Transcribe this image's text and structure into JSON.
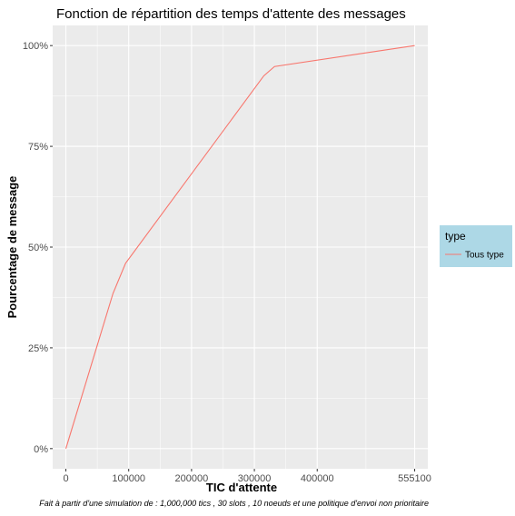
{
  "chart_data": {
    "type": "line",
    "title": "Fonction de répartition des temps d'attente des messages",
    "xlabel": "TIC d'attente",
    "ylabel": "Pourcentage de message",
    "caption": "Fait à partir d'une simulation de : 1,000,000 tics , 30 slots , 10 noeuds et une politique d'envoi non prioritaire",
    "xlim": [
      -21000,
      576000
    ],
    "ylim": [
      -0.05,
      1.05
    ],
    "x_ticks": [
      0,
      100000,
      200000,
      300000,
      400000,
      555100
    ],
    "x_tick_labels": [
      "0",
      "100000",
      "200000",
      "300000",
      "400000",
      "555100"
    ],
    "y_ticks": [
      0,
      0.25,
      0.5,
      0.75,
      1.0
    ],
    "y_tick_labels": [
      "0%",
      "25%",
      "50%",
      "75%",
      "100%"
    ],
    "grid": true,
    "legend": {
      "title": "type",
      "position": "right"
    },
    "series": [
      {
        "name": "Tous type",
        "color": "#F8766D",
        "x": [
          0,
          75000,
          95000,
          315000,
          332000,
          555100
        ],
        "y": [
          0.0,
          0.385,
          0.46,
          0.925,
          0.948,
          1.0
        ]
      }
    ]
  },
  "colors": {
    "panel_background": "#EBEBEB",
    "grid_major": "#FFFFFF",
    "legend_background": "#ADD8E6"
  }
}
